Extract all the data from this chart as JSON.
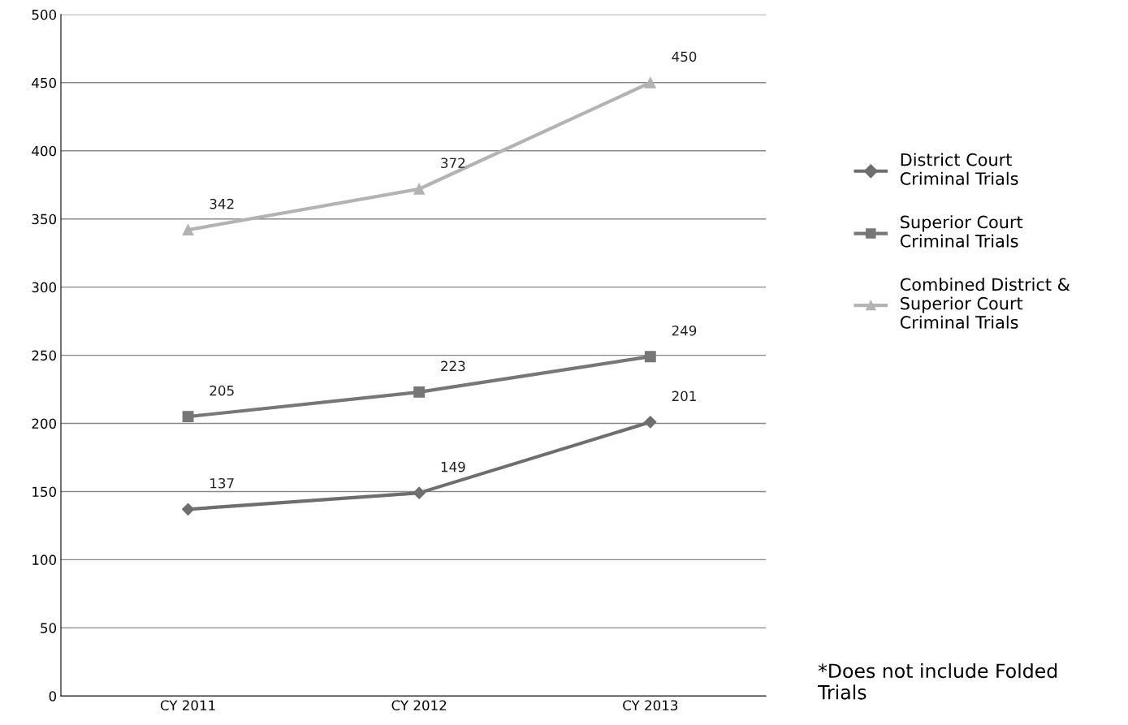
{
  "chart_data": {
    "type": "line",
    "categories": [
      "CY 2011",
      "CY 2012",
      "CY 2013"
    ],
    "series": [
      {
        "name": "District Court Criminal Trials",
        "color": "#6e6e6e",
        "marker": "diamond",
        "values": [
          137,
          149,
          201
        ]
      },
      {
        "name": "Superior Court Criminal Trials",
        "color": "#777777",
        "marker": "square",
        "values": [
          205,
          223,
          249
        ]
      },
      {
        "name": "Combined District & Superior Court Criminal Trials",
        "color": "#b3b3b3",
        "marker": "triangle",
        "values": [
          342,
          372,
          450
        ]
      }
    ],
    "ylim": [
      0,
      500
    ],
    "yticks": [
      0,
      50,
      100,
      150,
      200,
      250,
      300,
      350,
      400,
      450,
      500
    ],
    "grid": "y",
    "legend": "right",
    "data_labels": true,
    "line_style": "solid",
    "annotations": [
      "*Does not include Folded Trials"
    ]
  }
}
